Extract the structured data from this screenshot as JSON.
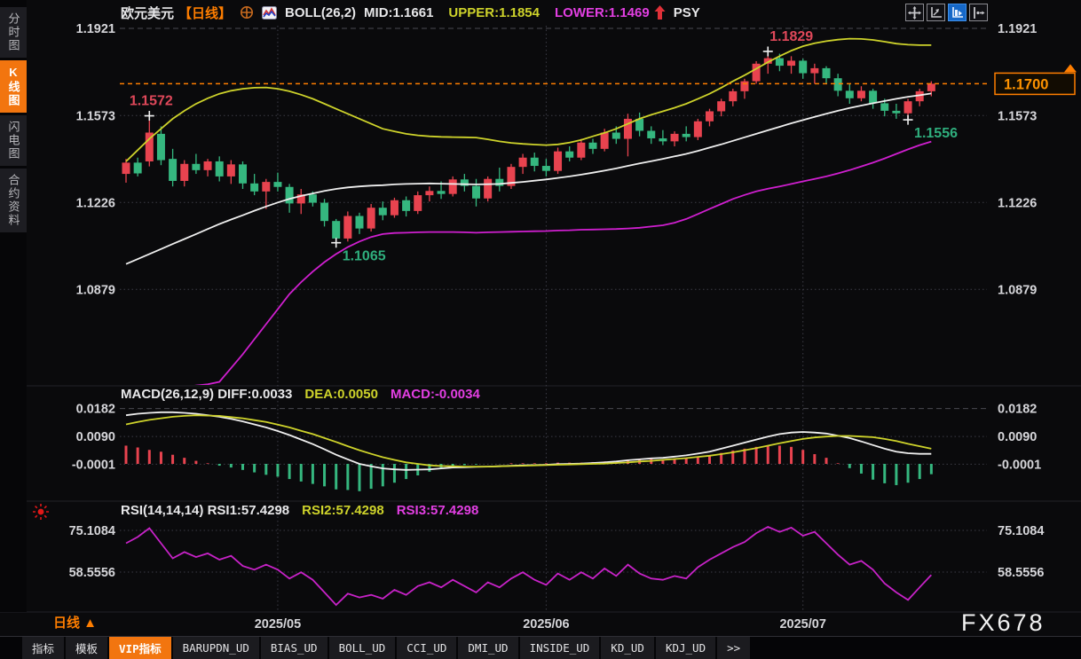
{
  "header": {
    "symbol": "欧元美元",
    "period_tag": "【日线】",
    "boll_label": "BOLL(26,2)",
    "mid_label": "MID:1.1661",
    "upper_label": "UPPER:1.1854",
    "psy_label": "PSY",
    "lower_label": "LOWER:1.1469"
  },
  "sidebar": {
    "items": [
      {
        "label": "分时图",
        "active": false
      },
      {
        "label": "K线图",
        "active": true
      },
      {
        "label": "闪电图",
        "active": false
      },
      {
        "label": "合约资料",
        "active": false
      }
    ]
  },
  "colors": {
    "up_red": "#e8434f",
    "down_green": "#35b77f",
    "boll_upper_yellow": "#ced32b",
    "boll_mid_white": "#efefef",
    "boll_lower_magenta": "#cf1fcf",
    "rsi_magenta": "#c722c7",
    "accent_orange": "#ff7e00",
    "grid": "#3c3c46",
    "axis_text": "#d6d6da",
    "annotation_high": "#e0485a",
    "annotation_low": "#2fae7d"
  },
  "indicators": {
    "macd": {
      "title": "MACD(26,12,9)",
      "diff": "DIFF:0.0033",
      "dea": "DEA:0.0050",
      "macd": "MACD:-0.0034"
    },
    "rsi": {
      "title": "RSI(14,14,14)",
      "rsi1": "RSI1:57.4298",
      "rsi2": "RSI2:57.4298",
      "rsi3": "RSI3:57.4298"
    }
  },
  "period_label": "日线 ▲",
  "watermark": "FX678",
  "current_price_label": "1.1700",
  "tabbar": {
    "items": [
      {
        "label": "指标",
        "active": false
      },
      {
        "label": "模板",
        "active": false
      },
      {
        "label": "VIP指标",
        "active": true
      },
      {
        "label": "BARUPDN_UD",
        "active": false
      },
      {
        "label": "BIAS_UD",
        "active": false
      },
      {
        "label": "BOLL_UD",
        "active": false
      },
      {
        "label": "CCI_UD",
        "active": false
      },
      {
        "label": "DMI_UD",
        "active": false
      },
      {
        "label": "INSIDE_UD",
        "active": false
      },
      {
        "label": "KD_UD",
        "active": false
      },
      {
        "label": "KDJ_UD",
        "active": false
      },
      {
        "label": ">>",
        "active": false
      }
    ]
  },
  "xaxis": {
    "labels": [
      "2025/05",
      "2025/06",
      "2025/07"
    ],
    "candle_index": [
      13,
      36,
      58
    ]
  },
  "chart_data": [
    {
      "id": "price",
      "type": "candlestick",
      "title": "欧元美元 日线",
      "indicator": "BOLL(26,2)",
      "boll_last": {
        "mid": 1.1661,
        "upper": 1.1854,
        "lower": 1.1469
      },
      "current_price": 1.17,
      "ylabels": [
        "1.1921",
        "1.1573",
        "1.1226",
        "1.0879"
      ],
      "ylim": [
        1.0879,
        1.1921
      ],
      "annotations": [
        {
          "text": "1.1572",
          "price": 1.1572,
          "index": 2,
          "kind": "high"
        },
        {
          "text": "1.1829",
          "price": 1.1829,
          "index": 55,
          "kind": "high"
        },
        {
          "text": "1.1065",
          "price": 1.1065,
          "index": 18,
          "kind": "low"
        },
        {
          "text": "1.1556",
          "price": 1.1556,
          "index": 67,
          "kind": "low"
        }
      ],
      "candles": [
        [
          1.134,
          1.14,
          1.1305,
          1.1385
        ],
        [
          1.1385,
          1.1405,
          1.133,
          1.1342
        ],
        [
          1.139,
          1.1572,
          1.137,
          1.1505
        ],
        [
          1.15,
          1.153,
          1.1375,
          1.1395
        ],
        [
          1.14,
          1.144,
          1.129,
          1.1312
        ],
        [
          1.1312,
          1.1395,
          1.129,
          1.138
        ],
        [
          1.138,
          1.142,
          1.134,
          1.1355
        ],
        [
          1.1355,
          1.14,
          1.133,
          1.139
        ],
        [
          1.139,
          1.141,
          1.131,
          1.133
        ],
        [
          1.133,
          1.1395,
          1.13,
          1.1378
        ],
        [
          1.1378,
          1.139,
          1.128,
          1.1302
        ],
        [
          1.1302,
          1.134,
          1.1255,
          1.127
        ],
        [
          1.127,
          1.132,
          1.12,
          1.1308
        ],
        [
          1.1308,
          1.1345,
          1.127,
          1.1288
        ],
        [
          1.1288,
          1.13,
          1.1185,
          1.1222
        ],
        [
          1.1222,
          1.128,
          1.118,
          1.1258
        ],
        [
          1.1258,
          1.127,
          1.121,
          1.1225
        ],
        [
          1.1225,
          1.124,
          1.113,
          1.1152
        ],
        [
          1.1152,
          1.116,
          1.1065,
          1.1082
        ],
        [
          1.1082,
          1.119,
          1.107,
          1.1172
        ],
        [
          1.1172,
          1.1185,
          1.11,
          1.1122
        ],
        [
          1.1122,
          1.122,
          1.111,
          1.1205
        ],
        [
          1.1205,
          1.123,
          1.1155,
          1.1175
        ],
        [
          1.1175,
          1.1245,
          1.1165,
          1.1235
        ],
        [
          1.1235,
          1.125,
          1.117,
          1.1192
        ],
        [
          1.1192,
          1.127,
          1.118,
          1.1255
        ],
        [
          1.1255,
          1.129,
          1.123,
          1.1272
        ],
        [
          1.1272,
          1.131,
          1.124,
          1.126
        ],
        [
          1.126,
          1.133,
          1.125,
          1.1318
        ],
        [
          1.1318,
          1.134,
          1.127,
          1.1292
        ],
        [
          1.1292,
          1.132,
          1.121,
          1.1242
        ],
        [
          1.1242,
          1.133,
          1.123,
          1.132
        ],
        [
          1.132,
          1.1365,
          1.127,
          1.1292
        ],
        [
          1.1292,
          1.138,
          1.128,
          1.1368
        ],
        [
          1.1368,
          1.142,
          1.134,
          1.1405
        ],
        [
          1.1405,
          1.1425,
          1.135,
          1.1372
        ],
        [
          1.1372,
          1.14,
          1.133,
          1.1352
        ],
        [
          1.1352,
          1.1445,
          1.134,
          1.143
        ],
        [
          1.143,
          1.145,
          1.139,
          1.1405
        ],
        [
          1.1405,
          1.148,
          1.1395,
          1.1465
        ],
        [
          1.1465,
          1.148,
          1.142,
          1.144
        ],
        [
          1.144,
          1.152,
          1.143,
          1.1505
        ],
        [
          1.1505,
          1.153,
          1.146,
          1.148
        ],
        [
          1.148,
          1.158,
          1.141,
          1.156
        ],
        [
          1.156,
          1.1585,
          1.149,
          1.1512
        ],
        [
          1.1512,
          1.153,
          1.146,
          1.1482
        ],
        [
          1.1482,
          1.1515,
          1.1455,
          1.147
        ],
        [
          1.147,
          1.151,
          1.145,
          1.15
        ],
        [
          1.15,
          1.153,
          1.147,
          1.1487
        ],
        [
          1.1487,
          1.156,
          1.1475,
          1.155
        ],
        [
          1.155,
          1.16,
          1.153,
          1.159
        ],
        [
          1.159,
          1.164,
          1.157,
          1.163
        ],
        [
          1.163,
          1.168,
          1.161,
          1.167
        ],
        [
          1.167,
          1.172,
          1.164,
          1.171
        ],
        [
          1.171,
          1.179,
          1.17,
          1.178
        ],
        [
          1.178,
          1.1829,
          1.174,
          1.1802
        ],
        [
          1.1802,
          1.182,
          1.175,
          1.1772
        ],
        [
          1.1772,
          1.181,
          1.174,
          1.1792
        ],
        [
          1.1792,
          1.18,
          1.172,
          1.1742
        ],
        [
          1.1742,
          1.178,
          1.17,
          1.1762
        ],
        [
          1.1762,
          1.177,
          1.17,
          1.1722
        ],
        [
          1.1722,
          1.174,
          1.165,
          1.1672
        ],
        [
          1.1672,
          1.17,
          1.162,
          1.1642
        ],
        [
          1.1642,
          1.169,
          1.163,
          1.1672
        ],
        [
          1.1672,
          1.168,
          1.16,
          1.1622
        ],
        [
          1.1622,
          1.164,
          1.157,
          1.1592
        ],
        [
          1.1592,
          1.162,
          1.156,
          1.1582
        ],
        [
          1.1582,
          1.164,
          1.1556,
          1.163
        ],
        [
          1.163,
          1.168,
          1.161,
          1.167
        ],
        [
          1.167,
          1.171,
          1.165,
          1.17
        ]
      ],
      "upper_band": [
        1.139,
        1.1435,
        1.148,
        1.152,
        1.156,
        1.1592,
        1.162,
        1.1642,
        1.166,
        1.1672,
        1.168,
        1.1684,
        1.1685,
        1.168,
        1.167,
        1.1656,
        1.164,
        1.162,
        1.16,
        1.158,
        1.156,
        1.154,
        1.152,
        1.151,
        1.15,
        1.1494,
        1.149,
        1.1488,
        1.1487,
        1.1486,
        1.1485,
        1.1478,
        1.147,
        1.1464,
        1.146,
        1.1457,
        1.1455,
        1.1458,
        1.1465,
        1.1476,
        1.149,
        1.1504,
        1.152,
        1.154,
        1.156,
        1.1576,
        1.159,
        1.1604,
        1.162,
        1.164,
        1.166,
        1.1684,
        1.171,
        1.1734,
        1.176,
        1.1786,
        1.181,
        1.1832,
        1.185,
        1.1862,
        1.187,
        1.1876,
        1.188,
        1.1879,
        1.1875,
        1.1868,
        1.186,
        1.1856,
        1.1854,
        1.1854
      ],
      "mid_band": [
        1.098,
        1.1,
        1.102,
        1.104,
        1.106,
        1.108,
        1.11,
        1.112,
        1.114,
        1.1158,
        1.1175,
        1.1193,
        1.121,
        1.1226,
        1.124,
        1.1252,
        1.1262,
        1.1272,
        1.128,
        1.1286,
        1.129,
        1.1293,
        1.1295,
        1.1298,
        1.13,
        1.1301,
        1.1302,
        1.1301,
        1.13,
        1.1299,
        1.1298,
        1.1299,
        1.13,
        1.1304,
        1.1308,
        1.1313,
        1.1318,
        1.1324,
        1.133,
        1.1337,
        1.1345,
        1.1353,
        1.1362,
        1.1372,
        1.1382,
        1.1391,
        1.14,
        1.141,
        1.142,
        1.1432,
        1.1445,
        1.1458,
        1.1472,
        1.1486,
        1.15,
        1.1514,
        1.1528,
        1.1542,
        1.1555,
        1.1568,
        1.158,
        1.1592,
        1.1603,
        1.1613,
        1.1622,
        1.1631,
        1.164,
        1.1648,
        1.1654,
        1.1661
      ],
      "lower_band": [
        1.03,
        1.035,
        1.04,
        1.045,
        1.048,
        1.049,
        1.0495,
        1.05,
        1.051,
        1.0565,
        1.062,
        1.068,
        1.074,
        1.08,
        1.086,
        1.0908,
        1.095,
        1.0988,
        1.102,
        1.1048,
        1.107,
        1.1088,
        1.11,
        1.1104,
        1.1105,
        1.1107,
        1.1108,
        1.1108,
        1.1108,
        1.1107,
        1.1105,
        1.1107,
        1.1108,
        1.1109,
        1.111,
        1.1111,
        1.1112,
        1.1114,
        1.1115,
        1.1117,
        1.1118,
        1.1119,
        1.112,
        1.1122,
        1.1125,
        1.113,
        1.1135,
        1.1145,
        1.116,
        1.118,
        1.12,
        1.122,
        1.124,
        1.1256,
        1.127,
        1.1281,
        1.129,
        1.13,
        1.131,
        1.132,
        1.133,
        1.1342,
        1.1355,
        1.137,
        1.1385,
        1.1402,
        1.142,
        1.1438,
        1.1455,
        1.1469
      ]
    },
    {
      "id": "macd",
      "type": "bar",
      "title": "MACD(26,12,9)",
      "last": {
        "diff": 0.0033,
        "dea": 0.005,
        "macd": -0.0034
      },
      "ylabels": [
        "0.0182",
        "0.0090",
        "-0.0001"
      ],
      "diff": [
        0.016,
        0.0165,
        0.0168,
        0.017,
        0.017,
        0.0168,
        0.0165,
        0.016,
        0.0155,
        0.0148,
        0.014,
        0.013,
        0.012,
        0.0108,
        0.0095,
        0.008,
        0.0065,
        0.0048,
        0.003,
        0.0015,
        0.0,
        -0.0008,
        -0.0015,
        -0.0018,
        -0.002,
        -0.0019,
        -0.0018,
        -0.0015,
        -0.0012,
        -0.0011,
        -0.001,
        -0.0009,
        -0.0008,
        -0.0006,
        -0.0005,
        -0.0004,
        -0.0003,
        -0.0001,
        0.0,
        0.0001,
        0.0003,
        0.0005,
        0.0008,
        0.0012,
        0.0015,
        0.0018,
        0.002,
        0.0024,
        0.0028,
        0.0034,
        0.004,
        0.005,
        0.006,
        0.007,
        0.008,
        0.009,
        0.0098,
        0.0103,
        0.0105,
        0.0103,
        0.01,
        0.0093,
        0.0085,
        0.0074,
        0.0062,
        0.005,
        0.004,
        0.0035,
        0.0033,
        0.0033
      ],
      "dea": [
        0.013,
        0.0138,
        0.0145,
        0.015,
        0.0155,
        0.0158,
        0.016,
        0.0159,
        0.0158,
        0.0154,
        0.015,
        0.0144,
        0.0138,
        0.0129,
        0.012,
        0.0109,
        0.0098,
        0.0085,
        0.0072,
        0.0058,
        0.0045,
        0.0033,
        0.0022,
        0.0013,
        0.0005,
        0.0,
        -0.0005,
        -0.0007,
        -0.0008,
        -0.0009,
        -0.0009,
        -0.0009,
        -0.0008,
        -0.0007,
        -0.0006,
        -0.0005,
        -0.0004,
        -0.0003,
        -0.0002,
        -0.0001,
        0.0,
        0.0001,
        0.0003,
        0.0005,
        0.0008,
        0.001,
        0.0013,
        0.0016,
        0.0019,
        0.0023,
        0.0027,
        0.0032,
        0.0038,
        0.0045,
        0.0052,
        0.006,
        0.0068,
        0.0075,
        0.0082,
        0.0087,
        0.009,
        0.0092,
        0.0092,
        0.009,
        0.0088,
        0.0082,
        0.0075,
        0.0066,
        0.0058,
        0.005
      ]
    },
    {
      "id": "rsi",
      "type": "line",
      "title": "RSI(14,14,14)",
      "last": {
        "rsi1": 57.4298,
        "rsi2": 57.4298,
        "rsi3": 57.4298
      },
      "ylabels": [
        "75.1084",
        "58.5556"
      ],
      "rsi": [
        70,
        72.5,
        76,
        70,
        64,
        66.5,
        64.5,
        66,
        63.5,
        65,
        61,
        59.5,
        61.5,
        59.5,
        56,
        58.5,
        55.5,
        50.5,
        45.5,
        50,
        48.5,
        49.5,
        48,
        51.5,
        49.5,
        53,
        54.5,
        52.5,
        55.5,
        53,
        50.5,
        54.5,
        52.5,
        56,
        58.5,
        55.5,
        53.5,
        58,
        55.5,
        58.5,
        56,
        60,
        57,
        61.5,
        58,
        56,
        55.5,
        57,
        56,
        60.5,
        63.5,
        66,
        68.5,
        70.5,
        74,
        76.5,
        74.5,
        76.2,
        73,
        74.5,
        70,
        65.5,
        61.5,
        63,
        59.5,
        54,
        50.5,
        47.5,
        52.5,
        57.43
      ]
    }
  ]
}
